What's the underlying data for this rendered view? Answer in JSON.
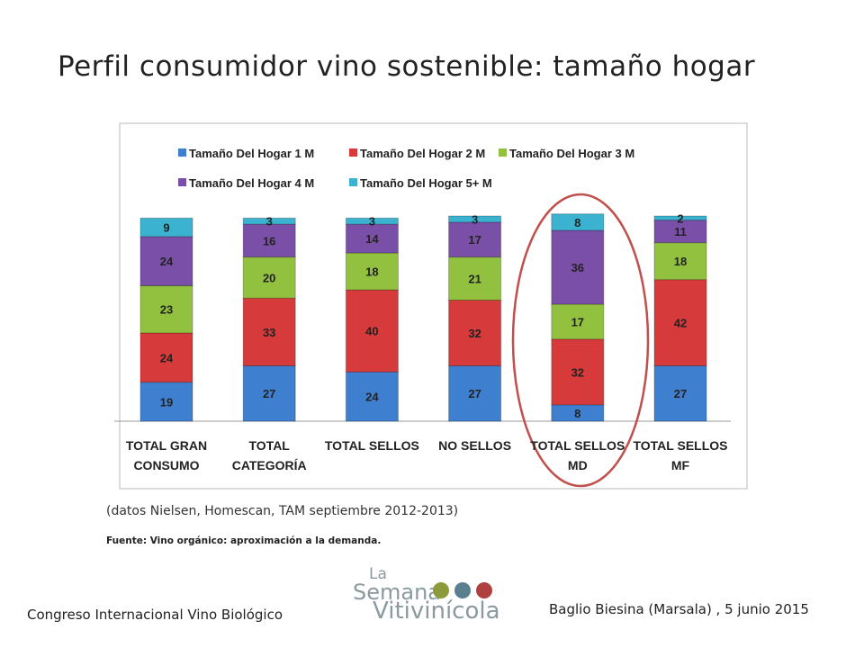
{
  "title": "Perfil consumidor vino sostenible: tamaño hogar",
  "chart_data": {
    "type": "stacked_bar",
    "categories": [
      "TOTAL GRAN CONSUMO",
      "TOTAL CATEGORÍA",
      "TOTAL SELLOS",
      "NO SELLOS",
      "TOTAL SELLOS MD",
      "TOTAL SELLOS MF"
    ],
    "series": [
      {
        "name": "Tamaño Del Hogar 1 M",
        "color": "#3f7fd0",
        "values": [
          19,
          27,
          24,
          27,
          8,
          27
        ]
      },
      {
        "name": "Tamaño Del Hogar 2 M",
        "color": "#d63a3a",
        "values": [
          24,
          33,
          40,
          32,
          32,
          42
        ]
      },
      {
        "name": "Tamaño Del Hogar 3 M",
        "color": "#92c140",
        "values": [
          23,
          20,
          18,
          21,
          17,
          18
        ]
      },
      {
        "name": "Tamaño Del Hogar 4 M",
        "color": "#7a4fa8",
        "values": [
          24,
          16,
          14,
          17,
          36,
          11
        ]
      },
      {
        "name": "Tamaño Del Hogar 5+ M",
        "color": "#3bb3d0",
        "values": [
          9,
          3,
          3,
          3,
          8,
          2
        ]
      }
    ],
    "ylim": [
      0,
      100
    ]
  },
  "note": "(datos Nielsen, Homescan, TAM septiembre 2012-2013)",
  "source": "Fuente: Vino orgánico: aproximación a la demanda.",
  "footer": {
    "left": "Congreso Internacional Vino Biológico",
    "right": "Baglio Biesina (Marsala) , 5 junio 2015",
    "logo": [
      "La",
      "Semana",
      "Vitivinícola"
    ]
  }
}
